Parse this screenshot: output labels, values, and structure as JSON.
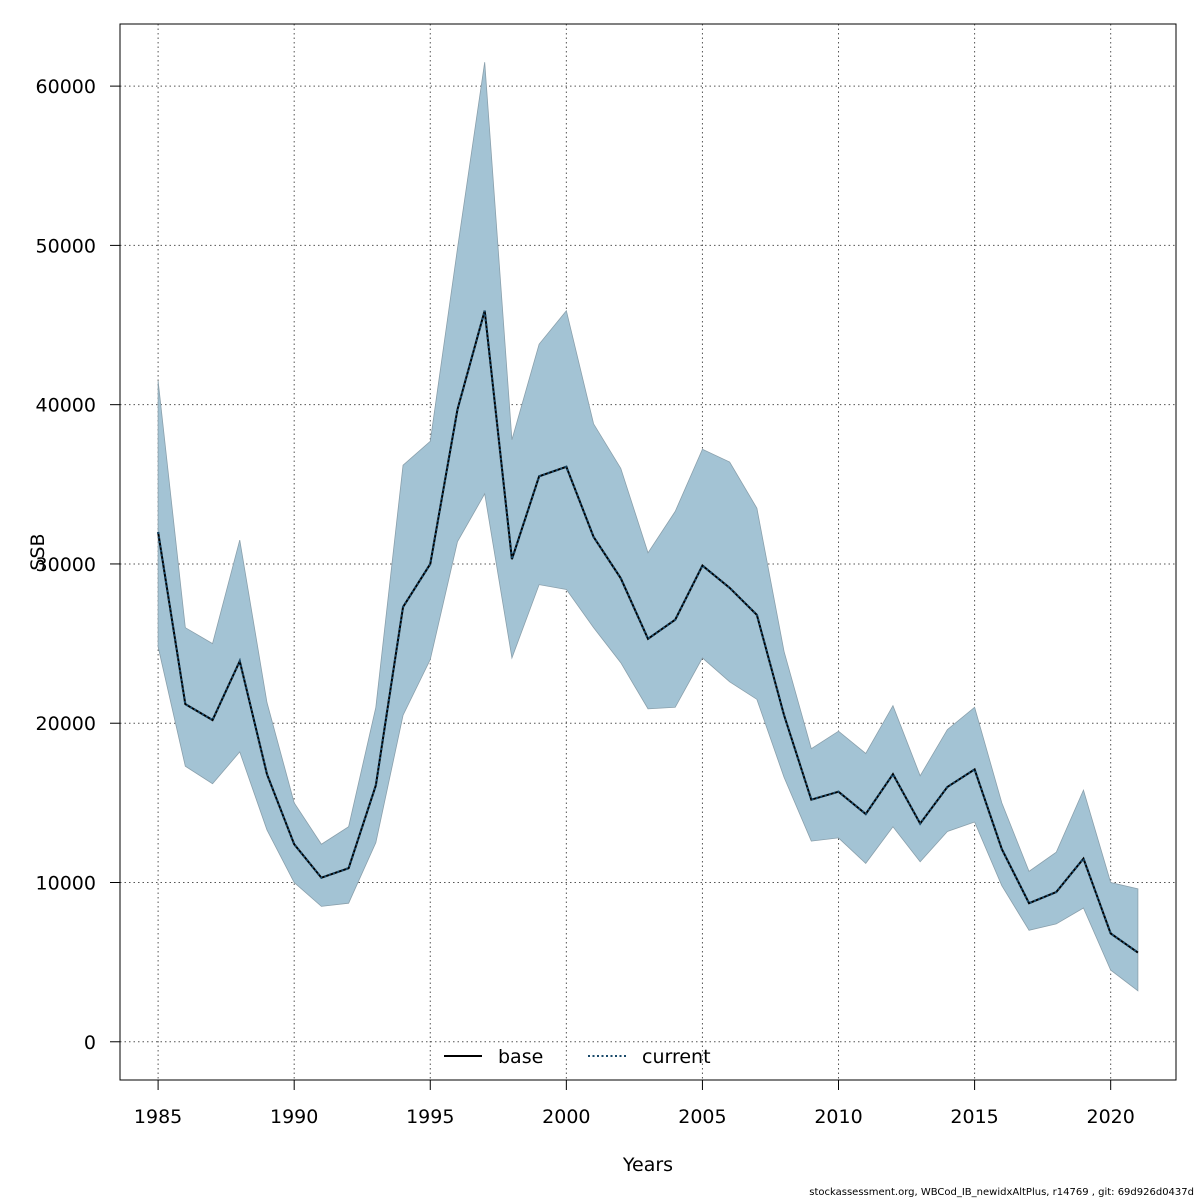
{
  "chart_data": {
    "type": "area",
    "xlabel": "Years",
    "ylabel": "SSB",
    "xlim": [
      1983.6,
      2022.4
    ],
    "ylim": [
      -2400,
      63900
    ],
    "x_ticks": [
      1985,
      1990,
      1995,
      2000,
      2005,
      2010,
      2015,
      2020
    ],
    "y_ticks": [
      0,
      10000,
      20000,
      30000,
      40000,
      50000,
      60000
    ],
    "grid": true,
    "legend_position": "bottom-center",
    "x": [
      1985,
      1986,
      1987,
      1988,
      1989,
      1990,
      1991,
      1992,
      1993,
      1994,
      1995,
      1996,
      1997,
      1998,
      1999,
      2000,
      2001,
      2002,
      2003,
      2004,
      2005,
      2006,
      2007,
      2008,
      2009,
      2010,
      2011,
      2012,
      2013,
      2014,
      2015,
      2016,
      2017,
      2018,
      2019,
      2020,
      2021
    ],
    "band": {
      "lower": [
        24800,
        17300,
        16200,
        18200,
        13300,
        10000,
        8500,
        8700,
        12500,
        20500,
        24000,
        31400,
        34400,
        24100,
        28700,
        28400,
        26000,
        23800,
        20900,
        21000,
        24100,
        22600,
        21500,
        16600,
        12600,
        12800,
        11200,
        13500,
        11300,
        13200,
        13800,
        9800,
        7000,
        7400,
        8400,
        4500,
        3200
      ],
      "upper": [
        41500,
        26000,
        25000,
        31500,
        21300,
        15000,
        12400,
        13500,
        21000,
        36200,
        37700,
        49800,
        61500,
        37800,
        43800,
        45900,
        38800,
        36000,
        30700,
        33300,
        37200,
        36400,
        33500,
        24500,
        18400,
        19500,
        18100,
        21100,
        16700,
        19600,
        21000,
        15000,
        10700,
        11900,
        15800,
        10000,
        9600
      ],
      "color": "#a3c3d4",
      "edge": "#8aa0ac"
    },
    "series": [
      {
        "name": "base",
        "color": "#000000",
        "dash": "solid",
        "values": [
          32000,
          21200,
          20200,
          23900,
          16800,
          12400,
          10300,
          10900,
          16100,
          27300,
          30000,
          39700,
          45900,
          30300,
          35500,
          36100,
          31700,
          29100,
          25300,
          26500,
          29900,
          28500,
          26800,
          20500,
          15200,
          15700,
          14300,
          16800,
          13700,
          16000,
          17100,
          12100,
          8700,
          9400,
          11500,
          6800,
          5600
        ]
      },
      {
        "name": "current",
        "color": "#1a4a6a",
        "dash": "dotted",
        "values": [
          32000,
          21200,
          20200,
          23900,
          16800,
          12400,
          10300,
          10900,
          16100,
          27300,
          30000,
          39700,
          45900,
          30300,
          35500,
          36100,
          31700,
          29100,
          25300,
          26500,
          29900,
          28500,
          26800,
          20500,
          15200,
          15700,
          14300,
          16800,
          13700,
          16000,
          17100,
          12100,
          8700,
          9400,
          11500,
          6800,
          5600
        ]
      }
    ]
  },
  "footer": "stockassessment.org, WBCod_IB_newidxAltPlus, r14769 , git: 69d926d0437d"
}
